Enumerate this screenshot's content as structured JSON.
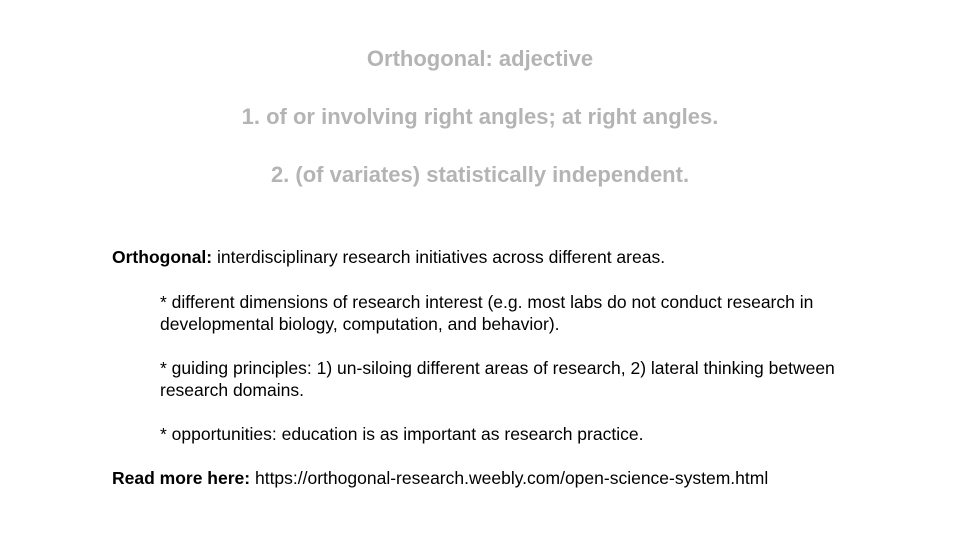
{
  "definition": {
    "heading": "Orthogonal: adjective",
    "sense1": "1. of or involving right angles; at right angles.",
    "sense2": "2. (of variates) statistically independent."
  },
  "description": {
    "term": "Orthogonal:",
    "text": " interdisciplinary research initiatives across different areas.",
    "bullets": [
      "* different dimensions of research interest (e.g. most labs do not conduct research in developmental biology, computation, and behavior).",
      "* guiding principles: 1) un-siloing different areas of research, 2) lateral thinking between research domains.",
      "* opportunities: education is as important as research practice."
    ]
  },
  "readmore": {
    "label": "Read more here:",
    "url": " https://orthogonal-research.weebly.com/open-science-system.html"
  }
}
